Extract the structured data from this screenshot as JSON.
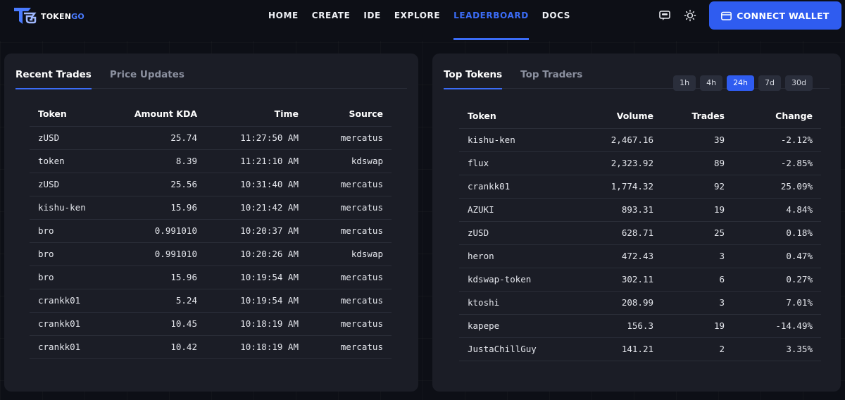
{
  "header": {
    "brand": {
      "name_prefix": "TOKEN",
      "name_suffix": "GO"
    },
    "nav": [
      {
        "label": "HOME",
        "active": false
      },
      {
        "label": "CREATE",
        "active": false
      },
      {
        "label": "IDE",
        "active": false
      },
      {
        "label": "EXPLORE",
        "active": false
      },
      {
        "label": "LEADERBOARD",
        "active": true
      },
      {
        "label": "DOCS",
        "active": false
      }
    ],
    "icons": [
      "chat-bot-icon",
      "sun-icon"
    ],
    "connect_label": "CONNECT WALLET",
    "accent": "#2f5cf0"
  },
  "left_panel": {
    "tabs": [
      {
        "label": "Recent Trades",
        "active": true
      },
      {
        "label": "Price Updates",
        "active": false
      }
    ],
    "columns": [
      "Token",
      "Amount KDA",
      "Time",
      "Source"
    ],
    "rows": [
      [
        "zUSD",
        "25.74",
        "11:27:50 AM",
        "mercatus"
      ],
      [
        "token",
        "8.39",
        "11:21:10 AM",
        "kdswap"
      ],
      [
        "zUSD",
        "25.56",
        "10:31:40 AM",
        "mercatus"
      ],
      [
        "kishu-ken",
        "15.96",
        "10:21:42 AM",
        "mercatus"
      ],
      [
        "bro",
        "0.991010",
        "10:20:37 AM",
        "mercatus"
      ],
      [
        "bro",
        "0.991010",
        "10:20:26 AM",
        "kdswap"
      ],
      [
        "bro",
        "15.96",
        "10:19:54 AM",
        "mercatus"
      ],
      [
        "crankk01",
        "5.24",
        "10:19:54 AM",
        "mercatus"
      ],
      [
        "crankk01",
        "10.45",
        "10:18:19 AM",
        "mercatus"
      ],
      [
        "crankk01",
        "10.42",
        "10:18:19 AM",
        "mercatus"
      ]
    ]
  },
  "right_panel": {
    "tabs": [
      {
        "label": "Top Tokens",
        "active": true
      },
      {
        "label": "Top Traders",
        "active": false
      }
    ],
    "periods": [
      {
        "label": "1h",
        "active": false
      },
      {
        "label": "4h",
        "active": false
      },
      {
        "label": "24h",
        "active": true
      },
      {
        "label": "7d",
        "active": false
      },
      {
        "label": "30d",
        "active": false
      }
    ],
    "columns": [
      "Token",
      "Volume",
      "Trades",
      "Change"
    ],
    "rows": [
      [
        "kishu-ken",
        "2,467.16",
        "39",
        "-2.12%"
      ],
      [
        "flux",
        "2,323.92",
        "89",
        "-2.85%"
      ],
      [
        "crankk01",
        "1,774.32",
        "92",
        "25.09%"
      ],
      [
        "AZUKI",
        "893.31",
        "19",
        "4.84%"
      ],
      [
        "zUSD",
        "628.71",
        "25",
        "0.18%"
      ],
      [
        "heron",
        "472.43",
        "3",
        "0.47%"
      ],
      [
        "kdswap-token",
        "302.11",
        "6",
        "0.27%"
      ],
      [
        "ktoshi",
        "208.99",
        "3",
        "7.01%"
      ],
      [
        "kapepe",
        "156.3",
        "19",
        "-14.49%"
      ],
      [
        "JustaChillGuy",
        "141.21",
        "2",
        "3.35%"
      ]
    ],
    "colors": {
      "positive": "#56d364",
      "negative": "#f26d6d"
    }
  }
}
